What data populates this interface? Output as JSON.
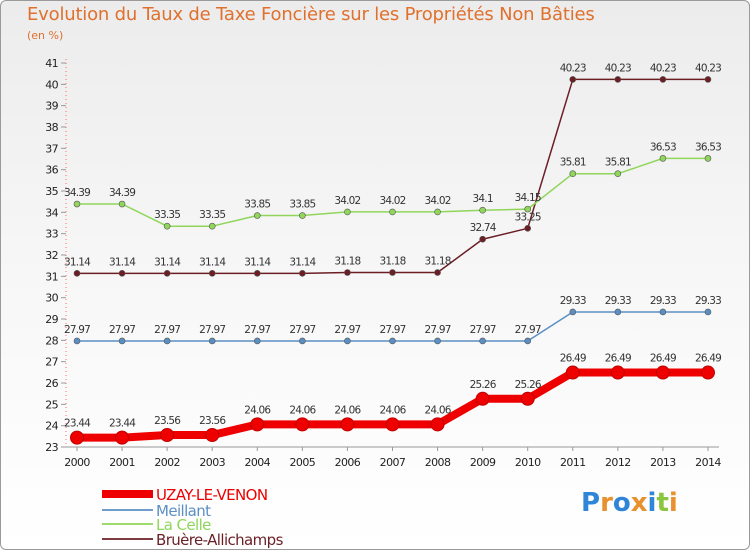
{
  "chart_data": {
    "type": "line",
    "title": "Evolution du Taux de Taxe Foncière sur les Propriétés Non Bâties",
    "subtitle": "(en %)",
    "x": [
      "2000",
      "2001",
      "2002",
      "2003",
      "2004",
      "2005",
      "2006",
      "2007",
      "2008",
      "2009",
      "2010",
      "2011",
      "2012",
      "2013",
      "2014"
    ],
    "ylim": [
      23,
      41
    ],
    "yticks": [
      "23",
      "24",
      "25",
      "26",
      "27",
      "28",
      "29",
      "30",
      "31",
      "32",
      "33",
      "34",
      "35",
      "36",
      "37",
      "38",
      "39",
      "40",
      "41"
    ],
    "legend_position": "bottom-left",
    "series": [
      {
        "name": "Bruère-Allichamps",
        "color": "#6b1f25",
        "values": [
          31.14,
          31.14,
          31.14,
          31.14,
          31.14,
          31.14,
          31.18,
          31.18,
          31.18,
          32.74,
          33.25,
          40.23,
          40.23,
          40.23,
          40.23
        ],
        "labels": [
          "31.14",
          "31.14",
          "31.14",
          "31.14",
          "31.14",
          "31.14",
          "31.18",
          "31.18",
          "31.18",
          "32.74",
          "33.25",
          "40.23",
          "40.23",
          "40.23",
          "40.23"
        ]
      },
      {
        "name": "La Celle",
        "color": "#8fd65a",
        "values": [
          34.39,
          34.39,
          33.35,
          33.35,
          33.85,
          33.85,
          34.02,
          34.02,
          34.02,
          34.1,
          34.15,
          35.81,
          35.81,
          36.53,
          36.53
        ],
        "labels": [
          "34.39",
          "34.39",
          "33.35",
          "33.35",
          "33.85",
          "33.85",
          "34.02",
          "34.02",
          "34.02",
          "34.1",
          "34.15",
          "35.81",
          "35.81",
          "36.53",
          "36.53"
        ]
      },
      {
        "name": "Meillant",
        "color": "#5b8fc4",
        "values": [
          27.97,
          27.97,
          27.97,
          27.97,
          27.97,
          27.97,
          27.97,
          27.97,
          27.97,
          27.97,
          27.97,
          29.33,
          29.33,
          29.33,
          29.33
        ],
        "labels": [
          "27.97",
          "27.97",
          "27.97",
          "27.97",
          "27.97",
          "27.97",
          "27.97",
          "27.97",
          "27.97",
          "27.97",
          "27.97",
          "29.33",
          "29.33",
          "29.33",
          "29.33"
        ]
      },
      {
        "name": "UZAY-LE-VENON",
        "color": "#ee0000",
        "values": [
          23.44,
          23.44,
          23.56,
          23.56,
          24.06,
          24.06,
          24.06,
          24.06,
          24.06,
          25.26,
          25.26,
          26.49,
          26.49,
          26.49,
          26.49
        ],
        "labels": [
          "23.44",
          "23.44",
          "23.56",
          "23.56",
          "24.06",
          "24.06",
          "24.06",
          "24.06",
          "24.06",
          "25.26",
          "25.26",
          "26.49",
          "26.49",
          "26.49",
          "26.49"
        ]
      }
    ],
    "legend": [
      "UZAY-LE-VENON",
      "Meillant",
      "La Celle",
      "Bruère-Allichamps"
    ]
  },
  "legend_colors": {
    "UZAY-LE-VENON": "#ee0000",
    "Meillant": "#5b8fc4",
    "La Celle": "#8fd65a",
    "Bruère-Allichamps": "#6b1f25"
  },
  "logo": {
    "letters": [
      "P",
      "r",
      "o",
      "x",
      "i",
      "t",
      "i"
    ],
    "colors": [
      "#2f86d6",
      "#e8912d",
      "#2f86d6",
      "#e8912d",
      "#2f86d6",
      "#8cc63f",
      "#e8912d"
    ]
  }
}
